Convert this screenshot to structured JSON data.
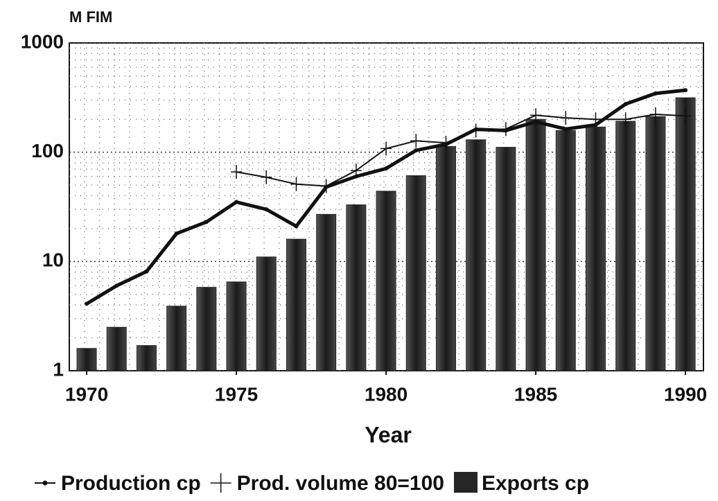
{
  "chart_data": {
    "type": "bar-line",
    "y_label": "M FIM",
    "x_label": "Year",
    "log_y": true,
    "grid": true,
    "legend": "bottom",
    "x": [
      1970,
      1971,
      1972,
      1973,
      1974,
      1975,
      1976,
      1977,
      1978,
      1979,
      1980,
      1981,
      1982,
      1983,
      1984,
      1985,
      1986,
      1987,
      1988,
      1989,
      1990
    ],
    "xlim": [
      1969.42,
      1990.6
    ],
    "xticks": [
      1970,
      1975,
      1980,
      1985,
      1990
    ],
    "ylim": [
      1,
      1000
    ],
    "yticks": [
      1,
      10,
      100,
      1000
    ],
    "series": [
      {
        "name": "Production cp",
        "kind": "line",
        "marker": "dot",
        "color": "#111111",
        "values": [
          4.1,
          6.0,
          8.1,
          18,
          23,
          35,
          30,
          21,
          48,
          60,
          71,
          104,
          118,
          162,
          158,
          190,
          163,
          178,
          276,
          345,
          370
        ]
      },
      {
        "name": "Prod. volume 80=100",
        "kind": "line",
        "marker": "plus",
        "color": "#111111",
        "values": [
          null,
          null,
          null,
          null,
          null,
          66,
          59,
          51,
          49,
          68,
          108,
          127,
          122,
          158,
          163,
          218,
          206,
          200,
          200,
          222,
          215
        ]
      },
      {
        "name": "Exports cp",
        "kind": "bar",
        "color": "#262626",
        "values": [
          1.6,
          2.5,
          1.7,
          3.9,
          5.8,
          6.5,
          11,
          16,
          27,
          33,
          44,
          61,
          113,
          130,
          111,
          200,
          158,
          170,
          192,
          212,
          315
        ]
      }
    ]
  }
}
